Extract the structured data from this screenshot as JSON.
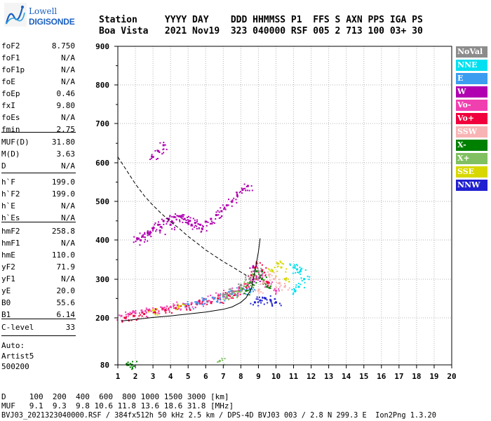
{
  "logo": {
    "lowell": "Lowell",
    "digisonde": "DIGISONDE"
  },
  "header": {
    "row1": "Station     YYYY DAY    DDD HHMMSS P1  FFS S AXN PPS IGA PS",
    "row2": "Boa Vista   2021 Nov19  323 040000 RSF 005 2 713 100 03+ 30"
  },
  "params_a": [
    {
      "k": "foF2",
      "v": "8.750"
    },
    {
      "k": "foF1",
      "v": "N/A"
    },
    {
      "k": "foF1p",
      "v": "N/A"
    },
    {
      "k": "foE",
      "v": "N/A"
    },
    {
      "k": "foEp",
      "v": "0.46"
    },
    {
      "k": "fxI",
      "v": "9.80"
    },
    {
      "k": "foEs",
      "v": "N/A"
    },
    {
      "k": "fmin",
      "v": "2.75"
    }
  ],
  "params_b": [
    {
      "k": "MUF(D)",
      "v": "31.80"
    },
    {
      "k": "M(D)",
      "v": "3.63"
    },
    {
      "k": "D",
      "v": "N/A"
    }
  ],
  "params_c": [
    {
      "k": "h`F",
      "v": "199.0"
    },
    {
      "k": "h`F2",
      "v": "199.0"
    },
    {
      "k": "h`E",
      "v": "N/A"
    },
    {
      "k": "h`Es",
      "v": "N/A"
    }
  ],
  "params_d": [
    {
      "k": "hmF2",
      "v": "258.8"
    },
    {
      "k": "hmF1",
      "v": "N/A"
    },
    {
      "k": "hmE",
      "v": "110.0"
    },
    {
      "k": "yF2",
      "v": "71.9"
    },
    {
      "k": "yF1",
      "v": "N/A"
    },
    {
      "k": "yE",
      "v": "20.0"
    },
    {
      "k": "B0",
      "v": "55.6"
    },
    {
      "k": "B1",
      "v": "6.14"
    }
  ],
  "params_e": [
    {
      "k": "C-level",
      "v": "33"
    }
  ],
  "auto": {
    "line1": "Auto:",
    "line2": "Artist5",
    "line3": "500200"
  },
  "legend": [
    {
      "label": "NoVal",
      "color": "#8c8c8c"
    },
    {
      "label": "NNE",
      "color": "#00e0f0"
    },
    {
      "label": "E",
      "color": "#3c9cf0"
    },
    {
      "label": "W",
      "color": "#b000b0"
    },
    {
      "label": "Vo-",
      "color": "#f040b0"
    },
    {
      "label": "Vo+",
      "color": "#f0003c"
    },
    {
      "label": "SSW",
      "color": "#f8b4b4"
    },
    {
      "label": "X-",
      "color": "#008000"
    },
    {
      "label": "X+",
      "color": "#80c060"
    },
    {
      "label": "SSE",
      "color": "#d8d800"
    },
    {
      "label": "NNW",
      "color": "#2020d0"
    }
  ],
  "footer": {
    "line1": "D     100  200  400  600  800 1000 1500 3000 [km]",
    "line2": "MUF   9.1  9.3  9.8 10.6 11.8 13.6 18.6 31.8 [MHz]",
    "line3": "BVJ03_2021323040000.RSF / 384fx512h 50 kHz 2.5 km / DPS-4D BVJ03 003 / 2.8 N 299.3 E  Ion2Png 1.3.20"
  },
  "chart_data": {
    "type": "scatter",
    "xlim": [
      1,
      20
    ],
    "ylim": [
      80,
      900
    ],
    "x_ticks": [
      "1",
      "2",
      "3",
      "4",
      "5",
      "6",
      "7",
      "8",
      "9",
      "10",
      "11",
      "12",
      "13",
      "14",
      "15",
      "16",
      "17",
      "18",
      "19",
      "20"
    ],
    "y_ticks": [
      "80",
      "200",
      "300",
      "400",
      "500",
      "600",
      "700",
      "800",
      "900"
    ],
    "grid": true,
    "legend_position": "right",
    "series": [
      {
        "name": "W",
        "color": "#b000b0",
        "x": [
          2.1,
          2.4,
          2.7,
          3.0,
          3.3,
          3.6,
          3.9,
          4.2,
          4.5,
          4.8,
          5.1,
          5.4,
          5.7,
          6.0,
          6.3,
          6.6,
          6.9,
          7.2,
          7.5,
          7.8,
          8.1,
          8.4,
          3.0,
          3.3,
          3.6,
          2.3,
          2.8,
          3.4,
          4.0,
          4.6,
          5.2,
          5.8,
          8.7,
          8.9
        ],
        "y": [
          405,
          410,
          420,
          430,
          440,
          450,
          455,
          460,
          462,
          455,
          450,
          445,
          440,
          448,
          455,
          465,
          475,
          490,
          500,
          515,
          530,
          540,
          615,
          630,
          645,
          400,
          415,
          425,
          440,
          460,
          440,
          430,
          330,
          300
        ]
      },
      {
        "name": "Vo-",
        "color": "#f040b0",
        "x": [
          1.2,
          1.6,
          2.0,
          2.4,
          2.8,
          3.2,
          3.6,
          4.0,
          4.4,
          4.8,
          5.2,
          5.6,
          6.0,
          6.4,
          6.8,
          7.2,
          7.6,
          8.0,
          8.4,
          8.8,
          9.2,
          9.6,
          10.0
        ],
        "y": [
          205,
          210,
          212,
          215,
          220,
          222,
          225,
          228,
          232,
          235,
          238,
          242,
          248,
          252,
          258,
          262,
          268,
          275,
          285,
          300,
          310,
          290,
          270
        ]
      },
      {
        "name": "Vo+",
        "color": "#f0003c",
        "x": [
          1.4,
          1.9,
          2.5,
          3.1,
          3.7,
          4.3,
          4.9,
          5.5,
          6.1,
          6.7,
          7.3,
          7.9,
          8.3,
          8.6,
          8.9,
          9.2,
          9.5
        ],
        "y": [
          200,
          205,
          210,
          215,
          220,
          225,
          230,
          236,
          242,
          250,
          258,
          268,
          280,
          310,
          340,
          320,
          290
        ]
      },
      {
        "name": "E",
        "color": "#3c9cf0",
        "x": [
          5.0,
          5.5,
          6.0,
          6.5,
          7.0,
          7.5,
          8.0,
          8.5
        ],
        "y": [
          235,
          240,
          248,
          250,
          255,
          262,
          270,
          275
        ]
      },
      {
        "name": "NNE",
        "color": "#00e0f0",
        "x": [
          11.0,
          11.2,
          11.4,
          11.6,
          11.1,
          11.3
        ],
        "y": [
          330,
          325,
          320,
          300,
          270,
          280
        ]
      },
      {
        "name": "X-",
        "color": "#008000",
        "x": [
          1.6,
          1.8,
          8.3,
          8.6,
          8.9,
          9.2,
          9.5
        ],
        "y": [
          80,
          80,
          270,
          290,
          320,
          300,
          280
        ]
      },
      {
        "name": "X+",
        "color": "#80c060",
        "x": [
          6.8,
          7.2,
          7.6,
          8.0,
          8.4,
          8.8
        ],
        "y": [
          90,
          255,
          265,
          275,
          290,
          310
        ]
      },
      {
        "name": "SSW",
        "color": "#f8b4b4",
        "x": [
          9.0,
          9.3,
          9.6,
          9.9,
          10.2,
          10.5
        ],
        "y": [
          270,
          290,
          310,
          300,
          290,
          280
        ]
      },
      {
        "name": "SSE",
        "color": "#d8d800",
        "x": [
          3.0,
          4.5,
          9.8,
          10.1,
          10.3,
          10.5
        ],
        "y": [
          220,
          230,
          320,
          340,
          330,
          300
        ]
      },
      {
        "name": "NNW",
        "color": "#2020d0",
        "x": [
          8.8,
          9.1,
          9.4,
          9.7,
          10.0
        ],
        "y": [
          240,
          245,
          250,
          245,
          240
        ]
      },
      {
        "name": "NoVal",
        "color": "#8c8c8c",
        "x": [
          7.0,
          7.5,
          8.0,
          8.5,
          9.0
        ],
        "y": [
          260,
          270,
          285,
          300,
          320
        ]
      }
    ],
    "profile_dashed": {
      "x": [
        1.0,
        1.5,
        2.0,
        2.5,
        3.0,
        3.5,
        4.0,
        4.5,
        5.0,
        5.5,
        6.0,
        6.5,
        7.0,
        7.5,
        8.0,
        8.3
      ],
      "y": [
        615,
        580,
        545,
        515,
        490,
        468,
        448,
        430,
        410,
        393,
        375,
        360,
        345,
        332,
        318,
        310
      ]
    },
    "trace_solid": {
      "x": [
        1.2,
        2.0,
        3.0,
        4.0,
        5.0,
        6.0,
        7.0,
        7.5,
        8.0,
        8.3,
        8.6,
        8.8,
        9.0,
        9.1
      ],
      "y": [
        192,
        196,
        201,
        205,
        210,
        215,
        222,
        228,
        240,
        252,
        275,
        320,
        370,
        405
      ]
    }
  }
}
